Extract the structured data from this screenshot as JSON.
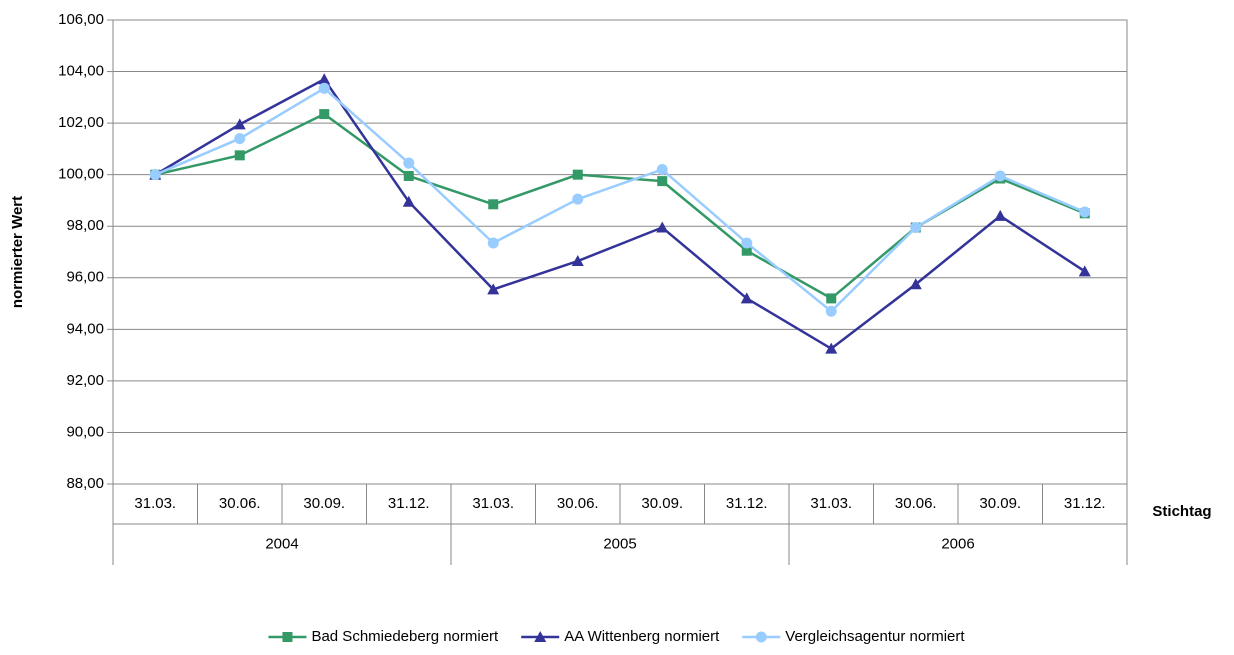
{
  "chart_data": {
    "type": "line",
    "y_label": "normierter Wert",
    "x_label": "Stichtag",
    "categories": [
      "31.03.",
      "30.06.",
      "30.09.",
      "31.12.",
      "31.03.",
      "30.06.",
      "30.09.",
      "31.12.",
      "31.03.",
      "30.06.",
      "30.09.",
      "31.12."
    ],
    "category_groups": [
      "2004",
      "2005",
      "2006"
    ],
    "ylim": [
      88,
      106
    ],
    "yticks": [
      {
        "value": 88,
        "label": "88,00"
      },
      {
        "value": 90,
        "label": "90,00"
      },
      {
        "value": 92,
        "label": "92,00"
      },
      {
        "value": 94,
        "label": "94,00"
      },
      {
        "value": 96,
        "label": "96,00"
      },
      {
        "value": 98,
        "label": "98,00"
      },
      {
        "value": 100,
        "label": "100,00"
      },
      {
        "value": 102,
        "label": "102,00"
      },
      {
        "value": 104,
        "label": "104,00"
      },
      {
        "value": 106,
        "label": "106,00"
      }
    ],
    "grid": true,
    "legend": "bottom",
    "series": [
      {
        "name": "Bad Schmiedeberg normiert",
        "color": "#339966",
        "marker": "square",
        "values": [
          100,
          100.75,
          102.35,
          99.95,
          98.85,
          100,
          99.75,
          97.05,
          95.2,
          97.95,
          99.85,
          98.5
        ]
      },
      {
        "name": "AA Wittenberg normiert",
        "color": "#333399",
        "marker": "triangle",
        "values": [
          100,
          101.95,
          103.7,
          98.95,
          95.55,
          96.65,
          97.95,
          95.2,
          93.25,
          95.75,
          98.4,
          96.25
        ]
      },
      {
        "name": "Vergleichsagentur normiert",
        "color": "#99ccff",
        "marker": "circle",
        "values": [
          100,
          101.4,
          103.35,
          100.45,
          97.35,
          99.05,
          100.2,
          97.35,
          94.7,
          97.95,
          99.95,
          98.55
        ]
      }
    ]
  }
}
